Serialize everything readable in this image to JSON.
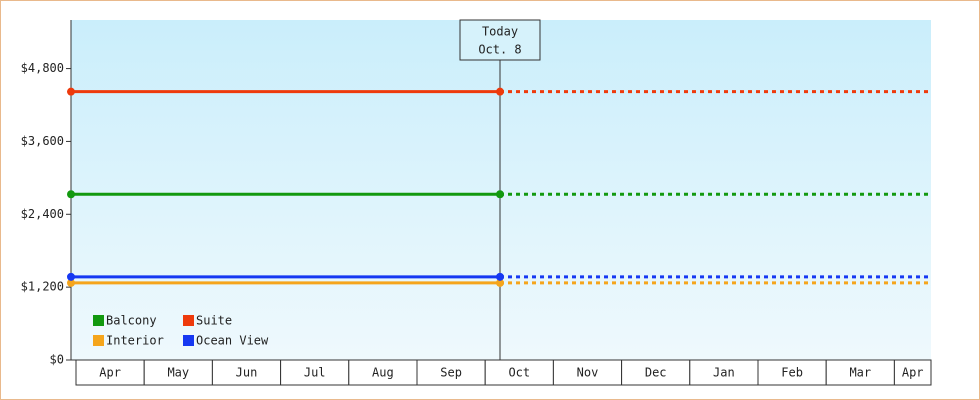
{
  "chart_data": {
    "type": "line",
    "annotation": [
      "Today",
      "Oct. 8"
    ],
    "categories": [
      "Apr",
      "May",
      "Jun",
      "Jul",
      "Aug",
      "Sep",
      "Oct",
      "Nov",
      "Dec",
      "Jan",
      "Feb",
      "Mar",
      "Apr"
    ],
    "x": [
      "Apr",
      "Oct. 8"
    ],
    "series": [
      {
        "name": "Balcony",
        "color": "#12990f",
        "values": [
          2730,
          2730
        ]
      },
      {
        "name": "Suite",
        "color": "#ee3a0c",
        "values": [
          4420,
          4420
        ]
      },
      {
        "name": "Interior",
        "color": "#f5a51c",
        "values": [
          1270,
          1270
        ]
      },
      {
        "name": "Ocean View",
        "color": "#1638f2",
        "values": [
          1370,
          1370
        ]
      }
    ],
    "ylim": [
      0,
      5600
    ],
    "yticks": [
      {
        "value": 0,
        "label": "$0"
      },
      {
        "value": 1200,
        "label": "$1,200"
      },
      {
        "value": 2400,
        "label": "$2,400"
      },
      {
        "value": 3600,
        "label": "$3,600"
      },
      {
        "value": 4800,
        "label": "$4,800"
      }
    ],
    "legend": "bottom-left"
  }
}
